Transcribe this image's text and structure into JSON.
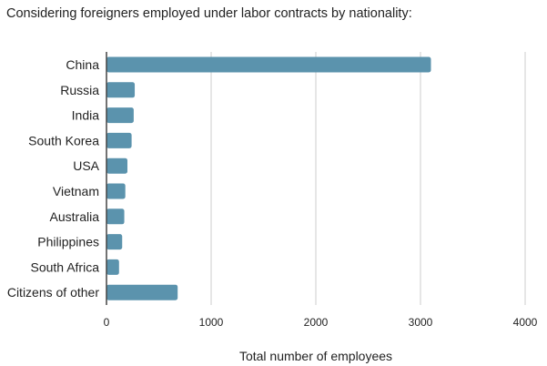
{
  "chart_data": {
    "type": "bar",
    "orientation": "horizontal",
    "title": "Considering foreigners employed under labor contracts by nationality:",
    "xlabel": "Total number of employees",
    "ylabel": "",
    "xlim": [
      0,
      4000
    ],
    "xticks": [
      0,
      1000,
      2000,
      3000,
      4000
    ],
    "grid": true,
    "bar_color": "#5b93ad",
    "categories": [
      "China",
      "Russia",
      "India",
      "South Korea",
      "USA",
      "Vietnam",
      "Australia",
      "Philippines",
      "South Africa",
      "Citizens of other"
    ],
    "values": [
      3100,
      270,
      260,
      240,
      200,
      180,
      170,
      150,
      120,
      680
    ]
  }
}
